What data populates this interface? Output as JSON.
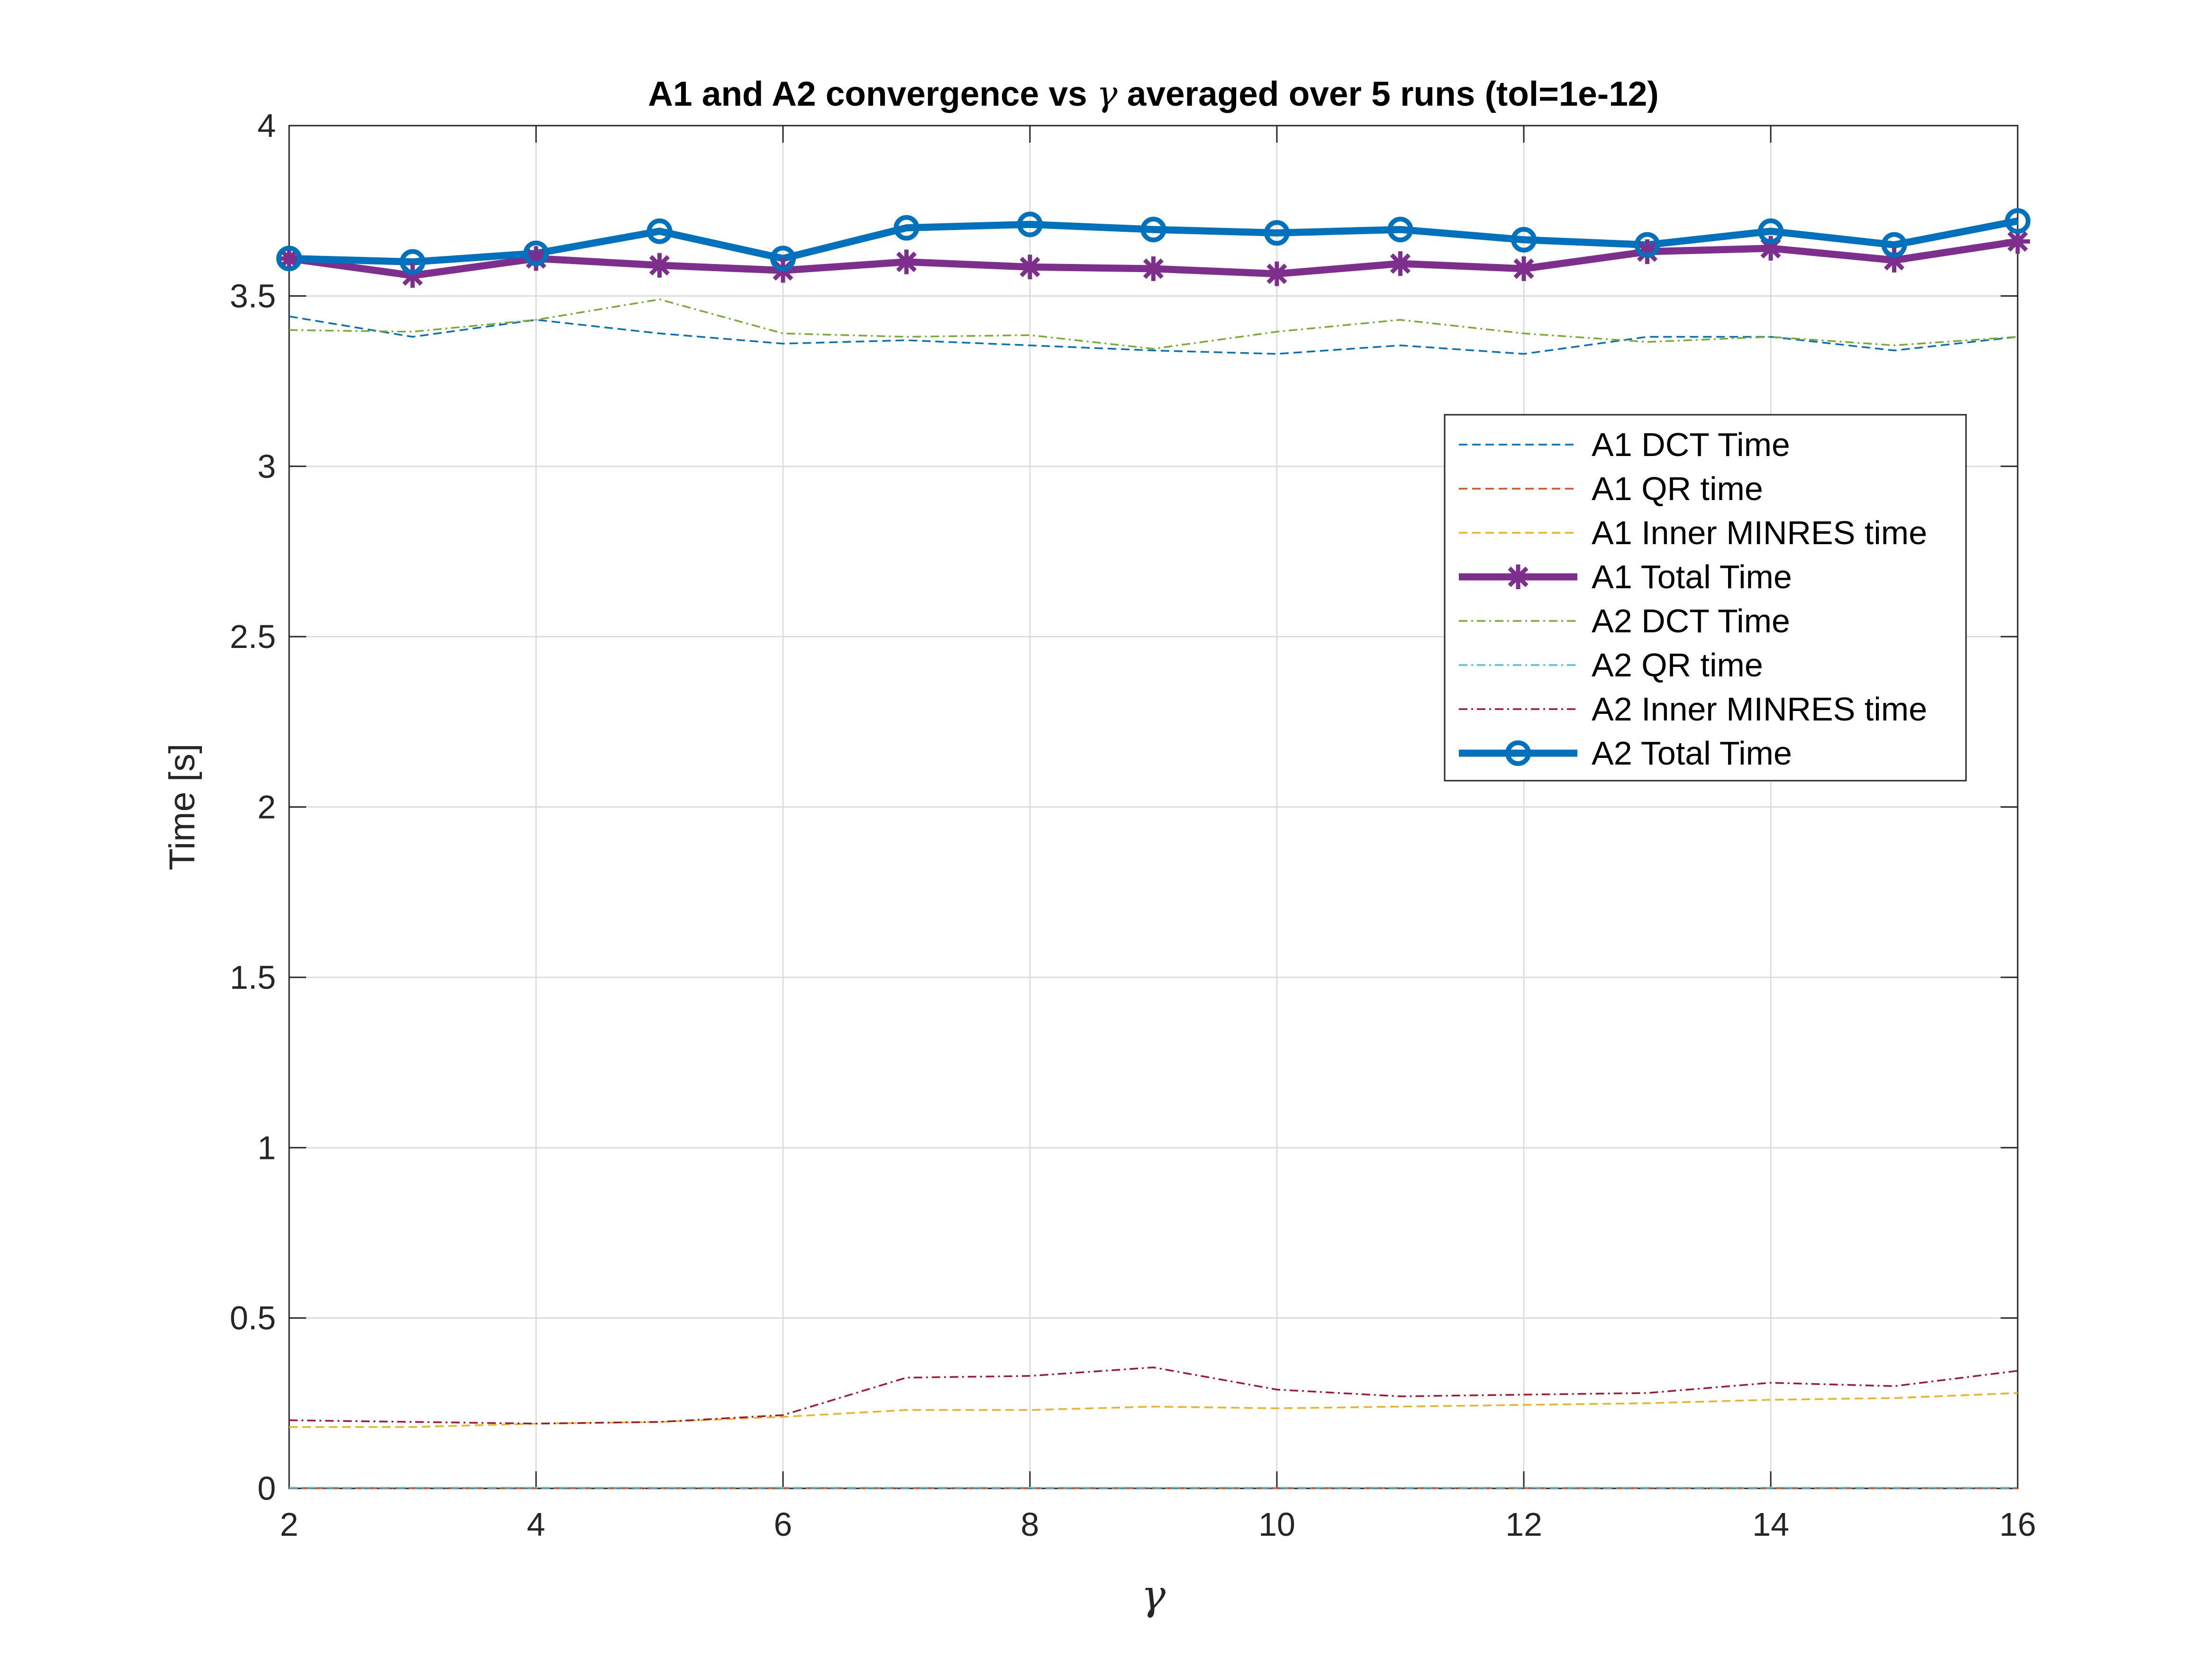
{
  "chart_data": {
    "type": "line",
    "title": {
      "before": "A1 and A2 convergence vs ",
      "symbol": "γ",
      "after": " averaged over 5 runs (tol=1e-12)"
    },
    "xlabel": "γ",
    "ylabel": "Time [s]",
    "xlim": [
      2,
      16
    ],
    "ylim": [
      0,
      4
    ],
    "grid": true,
    "legend_position": "upper-right",
    "x_ticks": [
      2,
      4,
      6,
      8,
      10,
      12,
      14,
      16
    ],
    "y_ticks": [
      0,
      0.5,
      1,
      1.5,
      2,
      2.5,
      3,
      3.5,
      4
    ],
    "x_tick_labels": [
      "2",
      "4",
      "6",
      "8",
      "10",
      "12",
      "14",
      "16"
    ],
    "y_tick_labels": [
      "0",
      "0.5",
      "1",
      "1.5",
      "2",
      "2.5",
      "3",
      "3.5",
      "4"
    ],
    "x": [
      2,
      3,
      4,
      5,
      6,
      7,
      8,
      9,
      10,
      11,
      12,
      13,
      14,
      15,
      16
    ],
    "series": [
      {
        "name": "A1 DCT Time",
        "color": "#0072BD",
        "line_style": "dashed",
        "marker": "none",
        "values": [
          3.44,
          3.38,
          3.43,
          3.39,
          3.36,
          3.37,
          3.355,
          3.34,
          3.33,
          3.355,
          3.33,
          3.38,
          3.38,
          3.34,
          3.38
        ]
      },
      {
        "name": "A1 QR time",
        "color": "#D95319",
        "line_style": "dashed",
        "marker": "none",
        "values": [
          0.001,
          0.001,
          0.001,
          0.001,
          0.001,
          0.001,
          0.001,
          0.001,
          0.001,
          0.001,
          0.001,
          0.001,
          0.001,
          0.001,
          0.001
        ]
      },
      {
        "name": "A1 Inner MINRES time",
        "color": "#EDB120",
        "line_style": "dashed",
        "marker": "none",
        "values": [
          0.18,
          0.18,
          0.19,
          0.195,
          0.21,
          0.23,
          0.23,
          0.24,
          0.235,
          0.24,
          0.245,
          0.25,
          0.26,
          0.265,
          0.28
        ]
      },
      {
        "name": "A1 Total Time",
        "color": "#7E2F8E",
        "line_style": "solid",
        "marker": "asterisk",
        "values": [
          3.61,
          3.56,
          3.61,
          3.59,
          3.575,
          3.6,
          3.585,
          3.58,
          3.565,
          3.595,
          3.58,
          3.63,
          3.64,
          3.605,
          3.66
        ]
      },
      {
        "name": "A2 DCT Time",
        "color": "#77AC30",
        "line_style": "dashdot",
        "marker": "none",
        "values": [
          3.4,
          3.395,
          3.43,
          3.49,
          3.39,
          3.38,
          3.385,
          3.345,
          3.395,
          3.43,
          3.39,
          3.365,
          3.38,
          3.355,
          3.38
        ]
      },
      {
        "name": "A2 QR time",
        "color": "#4DBEEE",
        "line_style": "dashdot",
        "marker": "none",
        "values": [
          0.002,
          0.002,
          0.002,
          0.002,
          0.002,
          0.002,
          0.002,
          0.002,
          0.002,
          0.002,
          0.002,
          0.002,
          0.002,
          0.002,
          0.002
        ]
      },
      {
        "name": "A2 Inner MINRES time",
        "color": "#A2142F",
        "line_style": "dashdot",
        "marker": "none",
        "values": [
          0.2,
          0.195,
          0.19,
          0.195,
          0.215,
          0.325,
          0.33,
          0.355,
          0.29,
          0.27,
          0.275,
          0.28,
          0.31,
          0.3,
          0.345
        ]
      },
      {
        "name": "A2 Total Time",
        "color": "#0072BD",
        "line_style": "solid",
        "marker": "circle",
        "values": [
          3.61,
          3.6,
          3.625,
          3.69,
          3.61,
          3.7,
          3.71,
          3.695,
          3.685,
          3.695,
          3.665,
          3.65,
          3.69,
          3.65,
          3.72
        ]
      }
    ]
  }
}
